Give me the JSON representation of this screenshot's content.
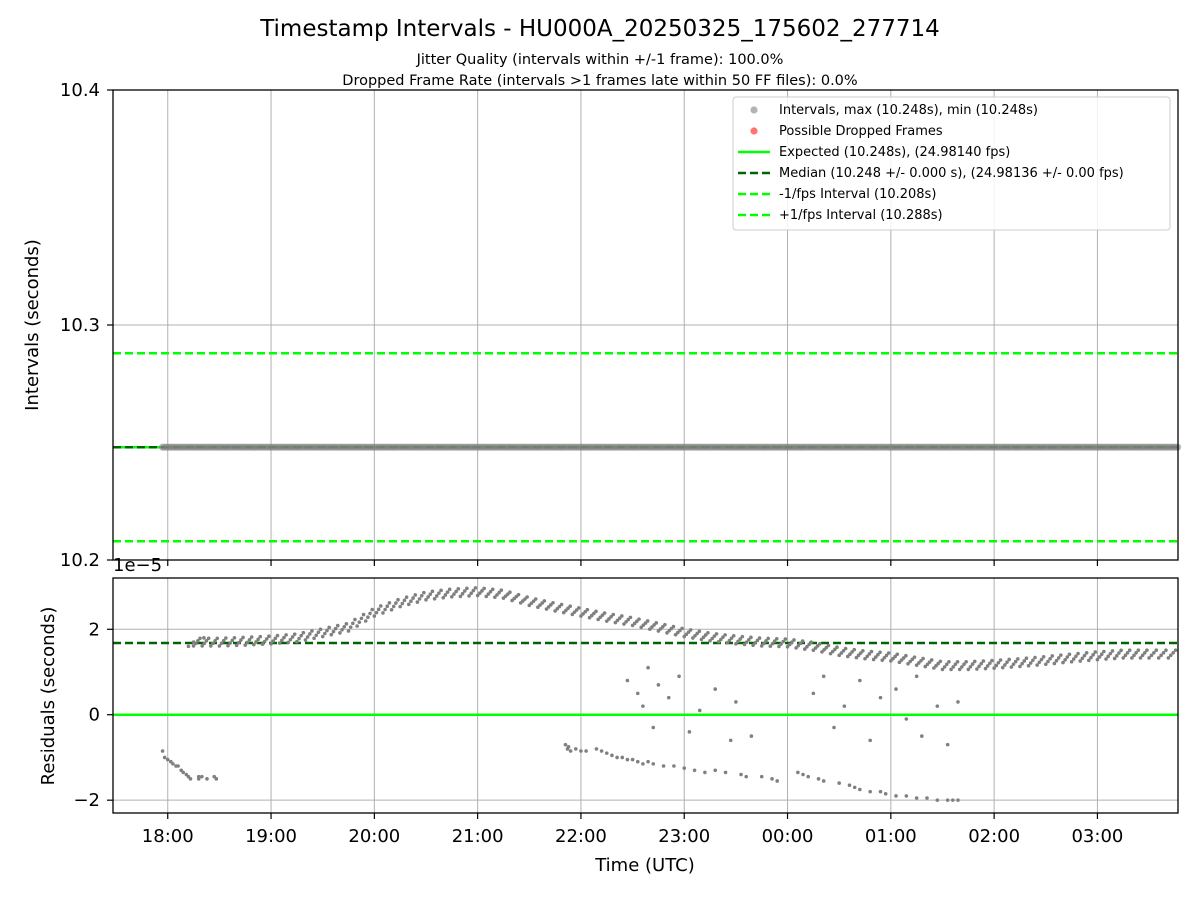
{
  "figure": {
    "title": "Timestamp Intervals - HU000A_20250325_175602_277714",
    "subtitle_1": "Jitter Quality (intervals within +/-1 frame): 100.0%",
    "subtitle_2": "Dropped Frame Rate (intervals >1 frames late within 50 FF files): 0.0%"
  },
  "colors": {
    "intervals": "#808080",
    "dropped": "#ff0000",
    "expected": "#00ff00",
    "median": "#006400",
    "fps_interval": "#00ff00",
    "grid": "#b0b0b0"
  },
  "chart_data": [
    {
      "type": "scatter",
      "ylabel": "Intervals (seconds)",
      "ylim": [
        10.2,
        10.4
      ],
      "yticks": [
        "10.2",
        "10.3",
        "10.4"
      ],
      "xlim_hours": [
        17.47,
        27.78
      ],
      "grid": true,
      "legend_position": "upper right",
      "series": [
        {
          "name": "Intervals, max (10.248s), min (10.248s)",
          "kind": "points",
          "x_range": [
            "17:57",
            "03:47"
          ],
          "y": 10.248
        },
        {
          "name": "Possible Dropped Frames",
          "kind": "points",
          "values": []
        },
        {
          "name": "Expected (10.248s), (24.98140 fps)",
          "kind": "hline",
          "y": 10.248
        },
        {
          "name": "Median (10.248 +/- 0.000 s), (24.98136 +/- 0.00 fps)",
          "kind": "hline",
          "y": 10.248
        },
        {
          "name": "-1/fps Interval (10.208s)",
          "kind": "hline",
          "y": 10.208
        },
        {
          "name": "+1/fps Interval (10.288s)",
          "kind": "hline",
          "y": 10.288
        }
      ]
    },
    {
      "type": "scatter",
      "ylabel": "Residuals (seconds)",
      "xlabel": "Time (UTC)",
      "offset_label": "1e−5",
      "ylim": [
        -2.3,
        3.2
      ],
      "yticks": [
        "−2",
        "0",
        "2"
      ],
      "xticks": [
        "18:00",
        "19:00",
        "20:00",
        "21:00",
        "22:00",
        "23:00",
        "00:00",
        "01:00",
        "02:00",
        "03:00"
      ],
      "grid": true,
      "lines": [
        {
          "kind": "hline",
          "y": 0,
          "color": "expected"
        },
        {
          "kind": "hline",
          "y": 1.68,
          "color": "median",
          "dashed": true
        }
      ],
      "main_band": {
        "x_hours": [
          18.25,
          18.5,
          18.75,
          19.0,
          19.25,
          19.5,
          19.75,
          20.0,
          20.25,
          20.5,
          20.75,
          21.0,
          21.25,
          21.5,
          21.75,
          22.0,
          22.25,
          22.5,
          22.75,
          23.0,
          23.25,
          23.5,
          23.75,
          24.0,
          24.25,
          24.5,
          24.75,
          25.0,
          25.25,
          25.5,
          25.75,
          26.0,
          26.25,
          26.5,
          26.75,
          27.0,
          27.25,
          27.5,
          27.78
        ],
        "y": [
          1.7,
          1.7,
          1.72,
          1.75,
          1.8,
          1.92,
          2.05,
          2.4,
          2.62,
          2.78,
          2.85,
          2.88,
          2.82,
          2.65,
          2.52,
          2.4,
          2.28,
          2.18,
          2.05,
          1.92,
          1.82,
          1.75,
          1.7,
          1.68,
          1.6,
          1.48,
          1.4,
          1.35,
          1.25,
          1.15,
          1.15,
          1.18,
          1.22,
          1.27,
          1.33,
          1.38,
          1.42,
          1.42,
          1.42
        ]
      },
      "scatter_points": {
        "x_hours": [
          17.95,
          17.97,
          18.0,
          18.03,
          18.05,
          18.08,
          18.1,
          18.13,
          18.15,
          18.18,
          18.2,
          18.22,
          18.3,
          18.3,
          18.33,
          18.38,
          18.45,
          18.47,
          21.85,
          21.87,
          21.9,
          21.88,
          21.95,
          22.0,
          22.05,
          22.15,
          22.2,
          22.25,
          22.3,
          22.35,
          22.4,
          22.45,
          22.5,
          22.55,
          22.6,
          22.65,
          22.7,
          22.8,
          22.9,
          23.0,
          23.1,
          23.2,
          23.3,
          23.4,
          23.55,
          23.6,
          23.75,
          23.85,
          23.9,
          22.45,
          22.55,
          22.6,
          22.65,
          22.7,
          22.75,
          22.85,
          22.95,
          23.05,
          23.15,
          23.3,
          23.45,
          23.5,
          23.65,
          24.1,
          24.15,
          24.2,
          24.3,
          24.35,
          24.5,
          24.6,
          24.65,
          24.7,
          24.8,
          24.9,
          24.95,
          25.05,
          25.15,
          25.25,
          25.35,
          25.45,
          25.55,
          25.6,
          25.65,
          24.25,
          24.35,
          24.45,
          24.55,
          24.7,
          24.8,
          24.9,
          25.05,
          25.15,
          25.25,
          25.3,
          25.45,
          25.55,
          25.65,
          18.2,
          18.35,
          18.25
        ],
        "y": [
          -0.85,
          -1.0,
          -1.05,
          -1.1,
          -1.15,
          -1.2,
          -1.2,
          -1.3,
          -1.35,
          -1.4,
          -1.45,
          -1.5,
          -1.45,
          -1.5,
          -1.45,
          -1.5,
          -1.45,
          -1.5,
          -0.7,
          -0.8,
          -0.85,
          -0.75,
          -0.8,
          -0.85,
          -0.85,
          -0.8,
          -0.85,
          -0.9,
          -0.95,
          -1.0,
          -1.0,
          -1.05,
          -1.05,
          -1.1,
          -1.15,
          -1.1,
          -1.15,
          -1.2,
          -1.2,
          -1.25,
          -1.3,
          -1.35,
          -1.3,
          -1.35,
          -1.4,
          -1.45,
          -1.45,
          -1.5,
          -1.55,
          0.8,
          0.5,
          0.2,
          1.1,
          -0.3,
          0.7,
          0.4,
          0.9,
          -0.4,
          0.1,
          0.6,
          -0.6,
          0.3,
          -0.5,
          -1.35,
          -1.4,
          -1.45,
          -1.5,
          -1.55,
          -1.6,
          -1.65,
          -1.7,
          -1.75,
          -1.8,
          -1.8,
          -1.85,
          -1.9,
          -1.9,
          -1.95,
          -1.95,
          -2.0,
          -2.0,
          -2.0,
          -2.0,
          0.5,
          0.9,
          -0.3,
          0.2,
          0.8,
          -0.6,
          0.4,
          0.6,
          -0.1,
          0.9,
          -0.5,
          0.2,
          -0.7,
          0.3,
          1.6,
          1.8,
          1.7
        ]
      }
    }
  ]
}
